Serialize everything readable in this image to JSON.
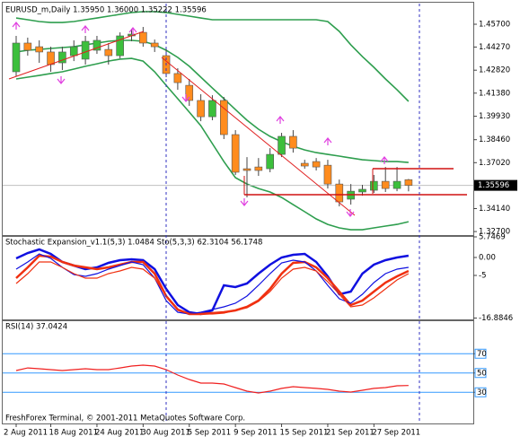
{
  "chart_data": [
    {
      "type": "candlestick",
      "title": "EURUSD_m,Daily 1.35950 1.36000 1.35222 1.35596",
      "categories": [
        "2 Aug 2011",
        null,
        null,
        "18 Aug 2011",
        null,
        null,
        null,
        "24 Aug 2011",
        null,
        null,
        null,
        "30 Aug 2011",
        null,
        null,
        null,
        "5 Sep 2011",
        null,
        null,
        null,
        "9 Sep 2011",
        null,
        null,
        null,
        "15 Sep 2011",
        null,
        null,
        null,
        "21 Sep 2011",
        null,
        null,
        null,
        "27 Sep 2011",
        null,
        null,
        null
      ],
      "open": [
        1.4272,
        1.4452,
        1.4429,
        1.4396,
        1.4328,
        1.4373,
        1.4351,
        1.4407,
        1.4412,
        1.4373,
        1.4497,
        1.4519,
        1.4452,
        1.4373,
        1.4261,
        1.4187,
        1.4092,
        1.399,
        1.4092,
        1.3878,
        1.3664,
        1.3675,
        1.3664,
        1.3754,
        1.3867,
        1.3698,
        1.3709,
        1.3686,
        1.3568,
        1.3473,
        1.3518,
        1.3529,
        1.3585,
        1.354,
        1.3595
      ],
      "high": [
        1.4497,
        1.4486,
        1.4469,
        1.4429,
        1.4429,
        1.4469,
        1.4497,
        1.4497,
        1.4452,
        1.4519,
        1.4542,
        1.4553,
        1.4474,
        1.4412,
        1.4294,
        1.4227,
        1.4131,
        1.4125,
        1.4114,
        1.3906,
        1.3737,
        1.3731,
        1.3793,
        1.3889,
        1.3906,
        1.372,
        1.3731,
        1.372,
        1.3596,
        1.3568,
        1.3563,
        1.3625,
        1.3675,
        1.3675,
        1.36
      ],
      "low": [
        1.4244,
        1.4373,
        1.4328,
        1.4272,
        1.4283,
        1.4339,
        1.4317,
        1.4384,
        1.4317,
        1.4356,
        1.4463,
        1.4429,
        1.4396,
        1.4238,
        1.4159,
        1.4058,
        1.3962,
        1.3968,
        1.385,
        1.3625,
        1.3484,
        1.3619,
        1.3642,
        1.3737,
        1.3765,
        1.3664,
        1.3653,
        1.354,
        1.3428,
        1.3439,
        1.3495,
        1.3512,
        1.3518,
        1.3523,
        1.35222
      ],
      "close": [
        1.4452,
        1.4407,
        1.4396,
        1.4317,
        1.4396,
        1.4429,
        1.4463,
        1.4469,
        1.4373,
        1.4497,
        1.4508,
        1.4452,
        1.4429,
        1.4261,
        1.4204,
        1.4092,
        1.399,
        1.4092,
        1.3878,
        1.3642,
        1.3653,
        1.3653,
        1.3754,
        1.3867,
        1.3793,
        1.3681,
        1.3675,
        1.3568,
        1.3456,
        1.3523,
        1.3535,
        1.3585,
        1.354,
        1.3585,
        1.35596
      ],
      "up_color": "#3cbf3c",
      "down_color": "#ff8c1e",
      "series": [
        {
          "color": "#2e9e4e",
          "values": [
            1.4609,
            1.4598,
            1.4587,
            1.4581,
            1.4581,
            1.4587,
            1.4598,
            1.4609,
            1.4621,
            1.4632,
            1.4643,
            1.4649,
            1.4649,
            1.4643,
            1.4632,
            1.4621,
            1.4609,
            1.4598,
            1.4598,
            1.4598,
            1.4598,
            1.4598,
            1.4598,
            1.4598,
            1.4598,
            1.4598,
            1.4598,
            1.4587,
            1.4525,
            1.4441,
            1.4367,
            1.43,
            1.4227,
            1.4159,
            1.4086
          ]
        },
        {
          "color": "#2e9e4e",
          "values": [
            1.4396,
            1.4407,
            1.4412,
            1.4418,
            1.4424,
            1.4429,
            1.4441,
            1.4452,
            1.4463,
            1.4469,
            1.4469,
            1.4463,
            1.4441,
            1.4407,
            1.4362,
            1.4306,
            1.4238,
            1.417,
            1.4103,
            1.4035,
            1.3968,
            1.3912,
            1.3867,
            1.3833,
            1.3805,
            1.3782,
            1.3765,
            1.3754,
            1.3743,
            1.3731,
            1.372,
            1.3715,
            1.3709,
            1.3709,
            1.3703
          ]
        },
        {
          "color": "#2e9e4e",
          "values": [
            1.4227,
            1.4238,
            1.4249,
            1.4261,
            1.4272,
            1.4289,
            1.4306,
            1.4322,
            1.4339,
            1.4351,
            1.4356,
            1.4339,
            1.4272,
            1.4187,
            1.4103,
            1.4019,
            1.3934,
            1.3822,
            1.3709,
            1.3608,
            1.3568,
            1.354,
            1.3518,
            1.3484,
            1.3439,
            1.3394,
            1.3349,
            1.3315,
            1.3293,
            1.3281,
            1.3281,
            1.3293,
            1.3304,
            1.3315,
            1.3332
          ]
        }
      ],
      "current_price": 1.35596,
      "ylim": [
        1.3248,
        1.4677
      ],
      "yticks": [
        {
          "value": 1.457,
          "label": "1.45700"
        },
        {
          "value": 1.4427,
          "label": "1.44270"
        },
        {
          "value": 1.4282,
          "label": "1.42820"
        },
        {
          "value": 1.4138,
          "label": "1.41380"
        },
        {
          "value": 1.3993,
          "label": "1.39930"
        },
        {
          "value": 1.3846,
          "label": "1.38460"
        },
        {
          "value": 1.3702,
          "label": "1.37020"
        },
        {
          "value": 1.3414,
          "label": "1.34140"
        },
        {
          "value": 1.327,
          "label": "1.32700"
        }
      ]
    },
    {
      "type": "line",
      "title": "Stochastic Expansion_v1.1(5,3) 1.0484 Sto(5,3,3) 62.3104 56.1748",
      "series": [
        {
          "color": "#1010e0",
          "values": [
            -0.25,
            1.25,
            2.25,
            1,
            -1.25,
            -2.25,
            -3.25,
            -2.75,
            -1.5,
            -0.75,
            -0.5,
            -0.75,
            -3.25,
            -8.75,
            -13.25,
            -15.25,
            -15.75,
            -14.75,
            -7.75,
            -8.25,
            -7.25,
            -4.5,
            -2,
            0,
            0.75,
            1,
            -1.25,
            -5.25,
            -10.25,
            -9.5,
            -4.5,
            -2,
            -0.75,
            0,
            0.5
          ]
        },
        {
          "color": "#f03010",
          "values": [
            -5.75,
            -2.75,
            0.5,
            0.25,
            -1.25,
            -2.25,
            -2.75,
            -3.25,
            -2.75,
            -2,
            -1.25,
            -1.25,
            -4.5,
            -10.75,
            -14.5,
            -15.75,
            -15.75,
            -15.5,
            -15.25,
            -14.75,
            -13.75,
            -12,
            -8.75,
            -4.5,
            -1.5,
            -1.25,
            -2.75,
            -5.75,
            -9.5,
            -13.25,
            -12,
            -9.5,
            -7,
            -5.25,
            -3.75
          ]
        },
        {
          "color": "#1010e0",
          "values": [
            -3.25,
            -1.25,
            1,
            -0.25,
            -2.75,
            -4.75,
            -5.25,
            -4.5,
            -3.25,
            -2.25,
            -1.25,
            -2,
            -5.75,
            -12,
            -15.25,
            -15.75,
            -15.25,
            -14.5,
            -13.75,
            -12.75,
            -10.75,
            -7.75,
            -4.5,
            -1.5,
            -0.75,
            -1.25,
            -3.75,
            -7.75,
            -11.5,
            -12.75,
            -10.25,
            -7,
            -4.5,
            -3.25,
            -2.75
          ]
        },
        {
          "color": "#f03010",
          "values": [
            -7.25,
            -4.5,
            -1.25,
            -1.25,
            -2.75,
            -4.5,
            -5.75,
            -5.75,
            -4.5,
            -3.75,
            -2.75,
            -3.25,
            -5.75,
            -10.75,
            -14.75,
            -15.75,
            -15.75,
            -15.75,
            -15.5,
            -14.75,
            -14,
            -12.25,
            -9.5,
            -5.75,
            -3.25,
            -2.75,
            -3.75,
            -6.75,
            -10.25,
            -13.75,
            -13.25,
            -11.25,
            -8.75,
            -6.25,
            -4.5
          ]
        }
      ],
      "ylim": [
        -16.8846,
        5.7469
      ],
      "yticks": [
        5.7469,
        {
          "value": 0,
          "label": "0.00"
        },
        -5,
        -16.8846
      ]
    },
    {
      "type": "line",
      "title": "RSI(14) 37.0424",
      "series": [
        {
          "color": "#f02020",
          "values": [
            52.6,
            55.3,
            54.4,
            53.5,
            52.6,
            53.5,
            54.4,
            53.5,
            53.5,
            55.3,
            57.2,
            58.1,
            57.2,
            53.5,
            47.9,
            43.3,
            39.5,
            39.5,
            38.6,
            34.9,
            31.2,
            29.3,
            31.2,
            34,
            35.8,
            34.9,
            34,
            33,
            31.2,
            30.2,
            32.1,
            34,
            34.9,
            36.7,
            37
          ]
        }
      ],
      "ylim": [
        0,
        100
      ],
      "yticks": [
        70,
        50,
        30
      ],
      "grid": true
    }
  ],
  "footer": "FreshForex Terminal, © 2001-2011 MetaQuotes Software Corp."
}
